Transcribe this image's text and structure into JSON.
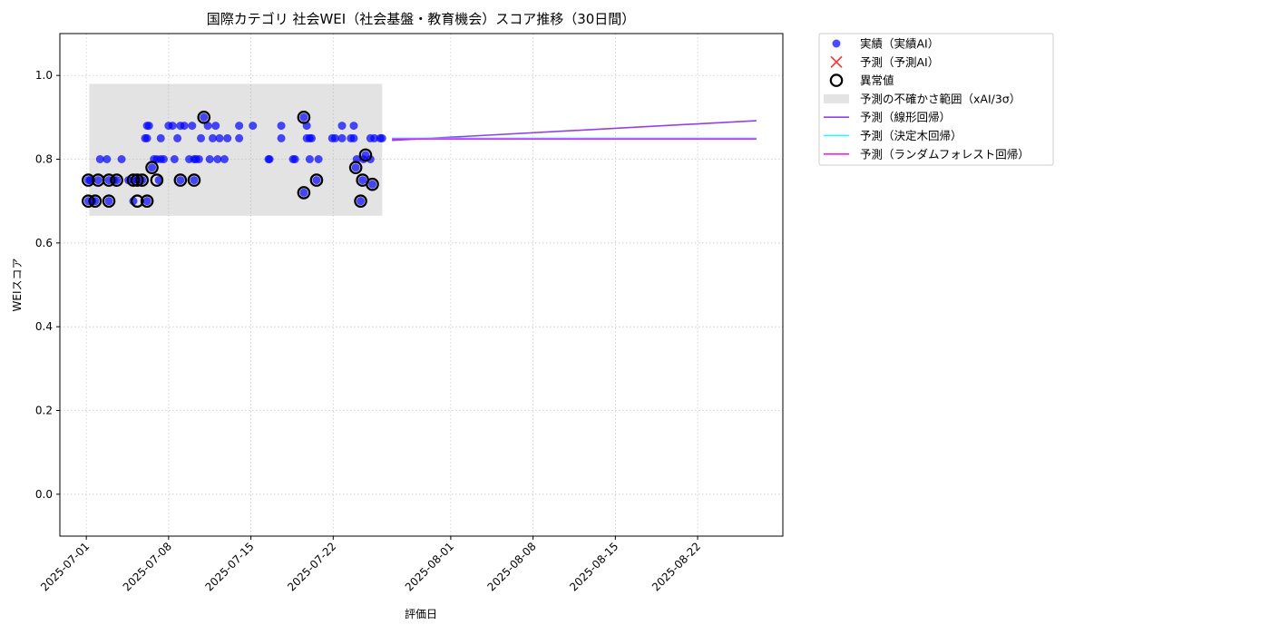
{
  "chart_data": {
    "type": "scatter",
    "title": "国際カテゴリ 社会WEI（社会基盤・教育機会）スコア推移（30日間）",
    "xlabel": "評価日",
    "ylabel": "WEIスコア",
    "xlim": [
      "2025-06-28 18:00",
      "2025-08-29 06:00"
    ],
    "ylim": [
      -0.1,
      1.1
    ],
    "yticks": [
      "0.0",
      "0.2",
      "0.4",
      "0.6",
      "0.8",
      "1.0"
    ],
    "xticks": [
      "2025-07-01",
      "2025-07-08",
      "2025-07-15",
      "2025-07-22",
      "2025-08-01",
      "2025-08-08",
      "2025-08-15",
      "2025-08-22"
    ],
    "grid": true,
    "legend_position": "outside upper right",
    "colors": {
      "actual": "#0000ff",
      "predicted": "#ff0000",
      "anomaly": "#000000",
      "band": "#b0b0b0",
      "linear": "#8a2be2",
      "tree": "#00ffff",
      "forest": "#ff00ff"
    },
    "legend": [
      {
        "key": "actual",
        "label": "実績（実績AI）",
        "marker": "dot"
      },
      {
        "key": "predicted",
        "label": "予測（予測AI）",
        "marker": "x"
      },
      {
        "key": "anomaly",
        "label": "異常値",
        "marker": "ring"
      },
      {
        "key": "band",
        "label": "予測の不確かさ範囲（xAI/3σ）",
        "marker": "rect"
      },
      {
        "key": "linear",
        "label": "予測（線形回帰）",
        "marker": "line"
      },
      {
        "key": "tree",
        "label": "予測（決定木回帰）",
        "marker": "line"
      },
      {
        "key": "forest",
        "label": "予測（ランダムフォレスト回帰）",
        "marker": "line"
      }
    ],
    "uncertainty_band": {
      "x": [
        "2025-07-01 06:00",
        "2025-07-26 04:00"
      ],
      "y": [
        0.665,
        0.98
      ]
    },
    "actual": [
      [
        "2025-07-01 04:00",
        0.75
      ],
      [
        "2025-07-01 04:00",
        0.7
      ],
      [
        "2025-07-01 08:00",
        0.75
      ],
      [
        "2025-07-01 12:00",
        0.7
      ],
      [
        "2025-07-01 18:00",
        0.7
      ],
      [
        "2025-07-02 00:00",
        0.75
      ],
      [
        "2025-07-02 04:00",
        0.8
      ],
      [
        "2025-07-02 18:00",
        0.8
      ],
      [
        "2025-07-02 22:00",
        0.7
      ],
      [
        "2025-07-02 22:00",
        0.75
      ],
      [
        "2025-07-03 08:00",
        0.75
      ],
      [
        "2025-07-03 14:00",
        0.75
      ],
      [
        "2025-07-04 00:00",
        0.8
      ],
      [
        "2025-07-04 14:00",
        0.75
      ],
      [
        "2025-07-05 00:00",
        0.75
      ],
      [
        "2025-07-05 00:00",
        0.7
      ],
      [
        "2025-07-05 08:00",
        0.75
      ],
      [
        "2025-07-05 18:00",
        0.75
      ],
      [
        "2025-07-06 04:00",
        0.7
      ],
      [
        "2025-07-06 00:00",
        0.85
      ],
      [
        "2025-07-06 04:00",
        0.85
      ],
      [
        "2025-07-06 04:00",
        0.88
      ],
      [
        "2025-07-06 08:00",
        0.88
      ],
      [
        "2025-07-06 14:00",
        0.78
      ],
      [
        "2025-07-06 18:00",
        0.8
      ],
      [
        "2025-07-07 00:00",
        0.8
      ],
      [
        "2025-07-07 04:00",
        0.75
      ],
      [
        "2025-07-07 08:00",
        0.8
      ],
      [
        "2025-07-07 08:00",
        0.85
      ],
      [
        "2025-07-07 14:00",
        0.8
      ],
      [
        "2025-07-08 00:00",
        0.88
      ],
      [
        "2025-07-08 08:00",
        0.88
      ],
      [
        "2025-07-08 12:00",
        0.8
      ],
      [
        "2025-07-08 18:00",
        0.85
      ],
      [
        "2025-07-09 00:00",
        0.75
      ],
      [
        "2025-07-09 00:00",
        0.88
      ],
      [
        "2025-07-09 08:00",
        0.88
      ],
      [
        "2025-07-09 18:00",
        0.8
      ],
      [
        "2025-07-10 00:00",
        0.88
      ],
      [
        "2025-07-10 04:00",
        0.8
      ],
      [
        "2025-07-10 04:00",
        0.75
      ],
      [
        "2025-07-10 08:00",
        0.8
      ],
      [
        "2025-07-10 14:00",
        0.8
      ],
      [
        "2025-07-10 18:00",
        0.85
      ],
      [
        "2025-07-11 00:00",
        0.9
      ],
      [
        "2025-07-11 08:00",
        0.88
      ],
      [
        "2025-07-11 12:00",
        0.8
      ],
      [
        "2025-07-11 18:00",
        0.85
      ],
      [
        "2025-07-12 00:00",
        0.88
      ],
      [
        "2025-07-12 04:00",
        0.8
      ],
      [
        "2025-07-12 08:00",
        0.85
      ],
      [
        "2025-07-12 18:00",
        0.8
      ],
      [
        "2025-07-13 00:00",
        0.85
      ],
      [
        "2025-07-14 00:00",
        0.88
      ],
      [
        "2025-07-14 00:00",
        0.85
      ],
      [
        "2025-07-15 04:00",
        0.88
      ],
      [
        "2025-07-16 12:00",
        0.8
      ],
      [
        "2025-07-16 14:00",
        0.8
      ],
      [
        "2025-07-17 14:00",
        0.88
      ],
      [
        "2025-07-17 14:00",
        0.85
      ],
      [
        "2025-07-18 14:00",
        0.8
      ],
      [
        "2025-07-18 18:00",
        0.8
      ],
      [
        "2025-07-19 12:00",
        0.9
      ],
      [
        "2025-07-19 12:00",
        0.72
      ],
      [
        "2025-07-19 18:00",
        0.88
      ],
      [
        "2025-07-19 18:00",
        0.85
      ],
      [
        "2025-07-20 00:00",
        0.85
      ],
      [
        "2025-07-20 00:00",
        0.8
      ],
      [
        "2025-07-20 04:00",
        0.85
      ],
      [
        "2025-07-20 14:00",
        0.75
      ],
      [
        "2025-07-20 18:00",
        0.8
      ],
      [
        "2025-07-21 22:00",
        0.85
      ],
      [
        "2025-07-22 04:00",
        0.85
      ],
      [
        "2025-07-22 18:00",
        0.88
      ],
      [
        "2025-07-22 18:00",
        0.85
      ],
      [
        "2025-07-23 12:00",
        0.85
      ],
      [
        "2025-07-23 18:00",
        0.88
      ],
      [
        "2025-07-23 18:00",
        0.85
      ],
      [
        "2025-07-23 22:00",
        0.78
      ],
      [
        "2025-07-24 00:00",
        0.8
      ],
      [
        "2025-07-24 08:00",
        0.7
      ],
      [
        "2025-07-24 12:00",
        0.75
      ],
      [
        "2025-07-24 14:00",
        0.8
      ],
      [
        "2025-07-24 18:00",
        0.81
      ],
      [
        "2025-07-25 04:00",
        0.85
      ],
      [
        "2025-07-25 04:00",
        0.8
      ],
      [
        "2025-07-25 08:00",
        0.74
      ],
      [
        "2025-07-25 12:00",
        0.85
      ],
      [
        "2025-07-26 00:00",
        0.85
      ],
      [
        "2025-07-26 04:00",
        0.85
      ]
    ],
    "anomalies": [
      [
        "2025-07-01 04:00",
        0.75
      ],
      [
        "2025-07-01 04:00",
        0.7
      ],
      [
        "2025-07-01 18:00",
        0.7
      ],
      [
        "2025-07-02 00:00",
        0.75
      ],
      [
        "2025-07-02 22:00",
        0.7
      ],
      [
        "2025-07-02 22:00",
        0.75
      ],
      [
        "2025-07-03 14:00",
        0.75
      ],
      [
        "2025-07-05 00:00",
        0.75
      ],
      [
        "2025-07-05 08:00",
        0.7
      ],
      [
        "2025-07-05 08:00",
        0.75
      ],
      [
        "2025-07-05 18:00",
        0.75
      ],
      [
        "2025-07-06 04:00",
        0.7
      ],
      [
        "2025-07-06 14:00",
        0.78
      ],
      [
        "2025-07-07 00:00",
        0.75
      ],
      [
        "2025-07-09 00:00",
        0.75
      ],
      [
        "2025-07-10 04:00",
        0.75
      ],
      [
        "2025-07-11 00:00",
        0.9
      ],
      [
        "2025-07-19 12:00",
        0.9
      ],
      [
        "2025-07-19 12:00",
        0.72
      ],
      [
        "2025-07-20 14:00",
        0.75
      ],
      [
        "2025-07-23 22:00",
        0.78
      ],
      [
        "2025-07-24 08:00",
        0.7
      ],
      [
        "2025-07-24 12:00",
        0.75
      ],
      [
        "2025-07-24 18:00",
        0.81
      ],
      [
        "2025-07-25 08:00",
        0.74
      ]
    ],
    "predicted": [],
    "lines": [
      {
        "key": "linear",
        "points": [
          [
            "2025-07-27 00:00",
            0.845
          ],
          [
            "2025-08-27 00:00",
            0.892
          ]
        ]
      },
      {
        "key": "tree",
        "points": [
          [
            "2025-07-27 00:00",
            0.85
          ],
          [
            "2025-08-27 00:00",
            0.85
          ]
        ]
      },
      {
        "key": "forest",
        "points": [
          [
            "2025-07-27 00:00",
            0.848
          ],
          [
            "2025-08-27 00:00",
            0.848
          ]
        ]
      }
    ]
  }
}
